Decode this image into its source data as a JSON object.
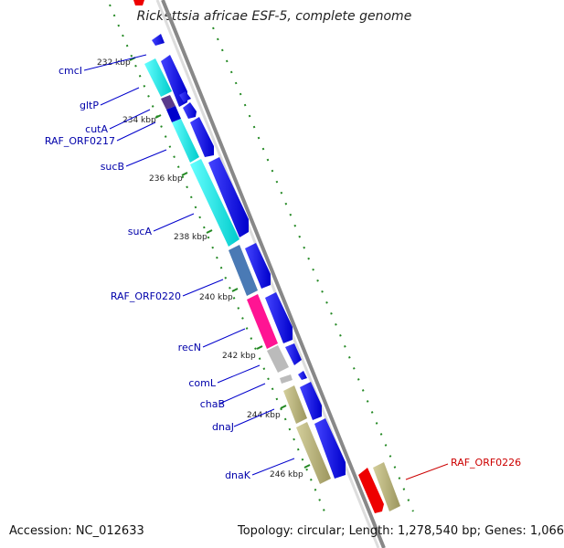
{
  "title": "Rickettsia africae ESF-5, complete genome",
  "accession": "Accession: NC_012633",
  "summary": "Topology: circular; Length: 1,278,540 bp; Genes: 1,066",
  "ticks": [
    "232 kbp",
    "234 kbp",
    "236 kbp",
    "238 kbp",
    "240 kbp",
    "242 kbp",
    "244 kbp",
    "246 kbp"
  ],
  "gene_labels": [
    "cmcI",
    "gltP",
    "cutA",
    "RAF_ORF0217",
    "sucB",
    "sucA",
    "RAF_ORF0220",
    "recN",
    "comL",
    "chaB",
    "dnaJ",
    "dnaK"
  ],
  "highlight_label": "RAF_ORF0226",
  "colors": {
    "cds_blue": "#0000ee",
    "cyan": "#00eeee",
    "steel": "#4a7ab5",
    "magenta": "#ff1493",
    "khaki": "#b5b07a",
    "grey": "#bbbbbb",
    "purple": "#5a3a8a",
    "red": "#ee0000",
    "backbone": "#888888",
    "dots": "#228822"
  }
}
